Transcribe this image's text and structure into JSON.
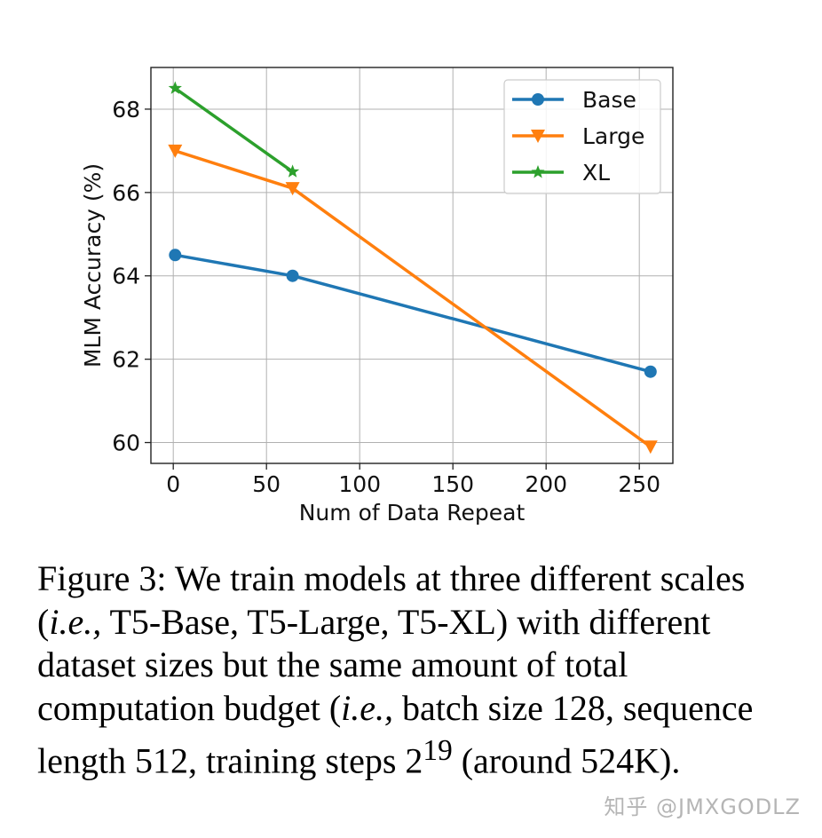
{
  "chart_data": {
    "type": "line",
    "xlabel": "Num of Data Repeat",
    "ylabel": "MLM Accuracy (%)",
    "xlim": [
      -12,
      268
    ],
    "ylim": [
      59.5,
      69.0
    ],
    "xticks": [
      0,
      50,
      100,
      150,
      200,
      250
    ],
    "yticks": [
      60,
      62,
      64,
      66,
      68
    ],
    "grid": true,
    "legend_position": "top-right",
    "series": [
      {
        "name": "Base",
        "color": "#1f77b4",
        "marker": "circle",
        "x": [
          1,
          64,
          256
        ],
        "y": [
          64.5,
          64.0,
          61.7
        ]
      },
      {
        "name": "Large",
        "color": "#ff7f0e",
        "marker": "triangle-down",
        "x": [
          1,
          64,
          256
        ],
        "y": [
          67.0,
          66.1,
          59.9
        ]
      },
      {
        "name": "XL",
        "color": "#2ca02c",
        "marker": "star",
        "x": [
          1,
          64
        ],
        "y": [
          68.5,
          66.5
        ]
      }
    ]
  },
  "caption": {
    "label": "Figure 3:",
    "part1": "We train models at three different scales (",
    "ie1": "i.e.,",
    "part2": " T5-Base, T5-Large, T5-XL) with different dataset sizes but the same amount of total computation budget (",
    "ie2": "i.e.,",
    "part3": " batch size 128, sequence length 512, training steps 2",
    "sup": "19",
    "part4": " (around 524K)."
  },
  "watermark": "知乎 @JMXGODLZ"
}
